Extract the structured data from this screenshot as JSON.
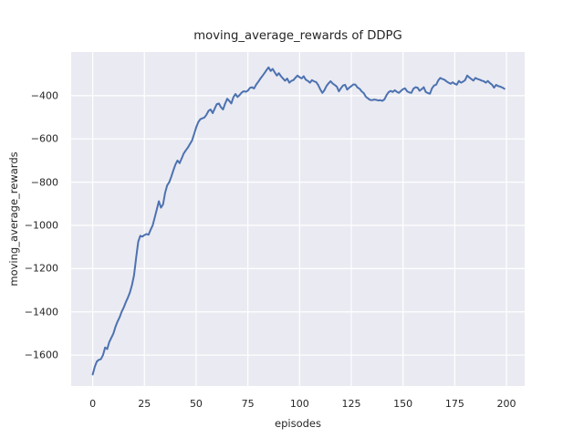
{
  "chart_data": {
    "type": "line",
    "title": "moving_average_rewards of DDPG",
    "xlabel": "episodes",
    "ylabel": "moving_average_rewards",
    "x_ticks": [
      0,
      25,
      50,
      75,
      100,
      125,
      150,
      175,
      200
    ],
    "y_ticks": [
      -400,
      -600,
      -800,
      -1000,
      -1200,
      -1400,
      -1600
    ],
    "xlim": [
      -10.4,
      208.8
    ],
    "ylim": [
      -1743,
      -198
    ],
    "grid": true,
    "legend_position": "none",
    "colors": {
      "line": "#4c72b0",
      "plot_background": "#eaeaf2",
      "grid": "#ffffff",
      "figure_background": "#ffffff",
      "text": "#262626"
    },
    "series": [
      {
        "name": "moving_average_rewards",
        "x": [
          0,
          1,
          2,
          3,
          4,
          5,
          6,
          7,
          8,
          9,
          10,
          11,
          12,
          13,
          14,
          15,
          16,
          17,
          18,
          19,
          20,
          21,
          22,
          23,
          24,
          25,
          26,
          27,
          28,
          29,
          30,
          31,
          32,
          33,
          34,
          35,
          36,
          37,
          38,
          39,
          40,
          41,
          42,
          43,
          44,
          45,
          46,
          47,
          48,
          49,
          50,
          51,
          52,
          53,
          54,
          55,
          56,
          57,
          58,
          59,
          60,
          61,
          62,
          63,
          64,
          65,
          66,
          67,
          68,
          69,
          70,
          71,
          72,
          73,
          74,
          75,
          76,
          77,
          78,
          79,
          80,
          81,
          82,
          83,
          84,
          85,
          86,
          87,
          88,
          89,
          90,
          91,
          92,
          93,
          94,
          95,
          96,
          97,
          98,
          99,
          100,
          101,
          102,
          103,
          104,
          105,
          106,
          107,
          108,
          109,
          110,
          111,
          112,
          113,
          114,
          115,
          116,
          117,
          118,
          119,
          120,
          121,
          122,
          123,
          124,
          125,
          126,
          127,
          128,
          129,
          130,
          131,
          132,
          133,
          134,
          135,
          136,
          137,
          138,
          139,
          140,
          141,
          142,
          143,
          144,
          145,
          146,
          147,
          148,
          149,
          150,
          151,
          152,
          153,
          154,
          155,
          156,
          157,
          158,
          159,
          160,
          161,
          162,
          163,
          164,
          165,
          166,
          167,
          168,
          169,
          170,
          171,
          172,
          173,
          174,
          175,
          176,
          177,
          178,
          179,
          180,
          181,
          182,
          183,
          184,
          185,
          186,
          187,
          188,
          189,
          190,
          191,
          192,
          193,
          194,
          195,
          196,
          197,
          198,
          199
        ],
        "y": [
          -1690,
          -1655,
          -1630,
          -1622,
          -1619,
          -1600,
          -1565,
          -1572,
          -1540,
          -1520,
          -1500,
          -1470,
          -1445,
          -1425,
          -1400,
          -1380,
          -1355,
          -1335,
          -1310,
          -1275,
          -1230,
          -1150,
          -1075,
          -1048,
          -1052,
          -1045,
          -1040,
          -1043,
          -1020,
          -1000,
          -963,
          -925,
          -888,
          -918,
          -903,
          -850,
          -815,
          -800,
          -775,
          -745,
          -718,
          -700,
          -712,
          -690,
          -668,
          -653,
          -640,
          -624,
          -608,
          -578,
          -548,
          -523,
          -509,
          -505,
          -501,
          -488,
          -470,
          -464,
          -481,
          -459,
          -439,
          -436,
          -454,
          -464,
          -437,
          -414,
          -424,
          -436,
          -407,
          -392,
          -406,
          -397,
          -386,
          -379,
          -382,
          -377,
          -364,
          -361,
          -367,
          -349,
          -336,
          -322,
          -309,
          -296,
          -282,
          -269,
          -286,
          -276,
          -292,
          -307,
          -296,
          -310,
          -321,
          -331,
          -321,
          -340,
          -332,
          -328,
          -317,
          -307,
          -315,
          -320,
          -310,
          -326,
          -332,
          -340,
          -328,
          -334,
          -337,
          -351,
          -371,
          -387,
          -375,
          -355,
          -343,
          -333,
          -344,
          -351,
          -358,
          -380,
          -365,
          -353,
          -350,
          -372,
          -363,
          -356,
          -348,
          -349,
          -362,
          -368,
          -380,
          -388,
          -405,
          -412,
          -419,
          -421,
          -418,
          -419,
          -422,
          -421,
          -424,
          -417,
          -398,
          -384,
          -378,
          -383,
          -375,
          -382,
          -387,
          -378,
          -370,
          -366,
          -380,
          -385,
          -387,
          -368,
          -361,
          -363,
          -377,
          -370,
          -361,
          -383,
          -388,
          -391,
          -366,
          -353,
          -349,
          -330,
          -318,
          -323,
          -326,
          -334,
          -340,
          -345,
          -338,
          -345,
          -349,
          -332,
          -340,
          -335,
          -328,
          -307,
          -315,
          -323,
          -330,
          -318,
          -323,
          -326,
          -330,
          -333,
          -340,
          -332,
          -342,
          -349,
          -363,
          -350,
          -356,
          -358,
          -362,
          -368
        ]
      }
    ]
  }
}
